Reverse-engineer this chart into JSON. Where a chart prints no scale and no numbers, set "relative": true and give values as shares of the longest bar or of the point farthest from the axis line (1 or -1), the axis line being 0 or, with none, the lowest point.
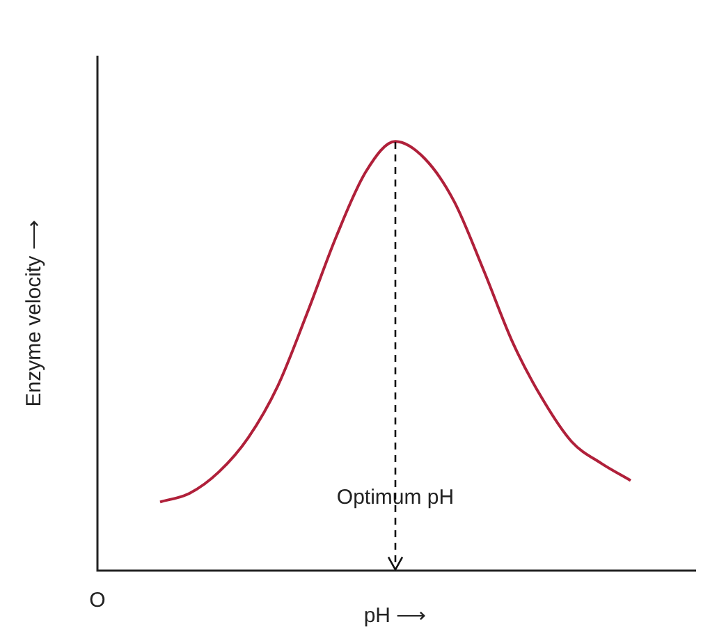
{
  "chart_data": {
    "type": "line",
    "relative": true,
    "xlabel": "pH ⟶",
    "ylabel": "Enzyme velocity ⟶",
    "categories": [
      null,
      null,
      null,
      null,
      null,
      null,
      null,
      null,
      null,
      null,
      null,
      null,
      null,
      null,
      null,
      null,
      null
    ],
    "series": [
      {
        "color": "#b0203a",
        "values": [
          0.16,
          0.18,
          0.23,
          0.31,
          0.43,
          0.6,
          0.78,
          0.93,
          1.0,
          0.96,
          0.86,
          0.7,
          0.53,
          0.4,
          0.3,
          0.25,
          0.21
        ]
      }
    ],
    "annotations": [
      "O",
      "Optimum pH"
    ],
    "marker": "none",
    "line_style": "solid",
    "grid": false,
    "legend": false
  }
}
